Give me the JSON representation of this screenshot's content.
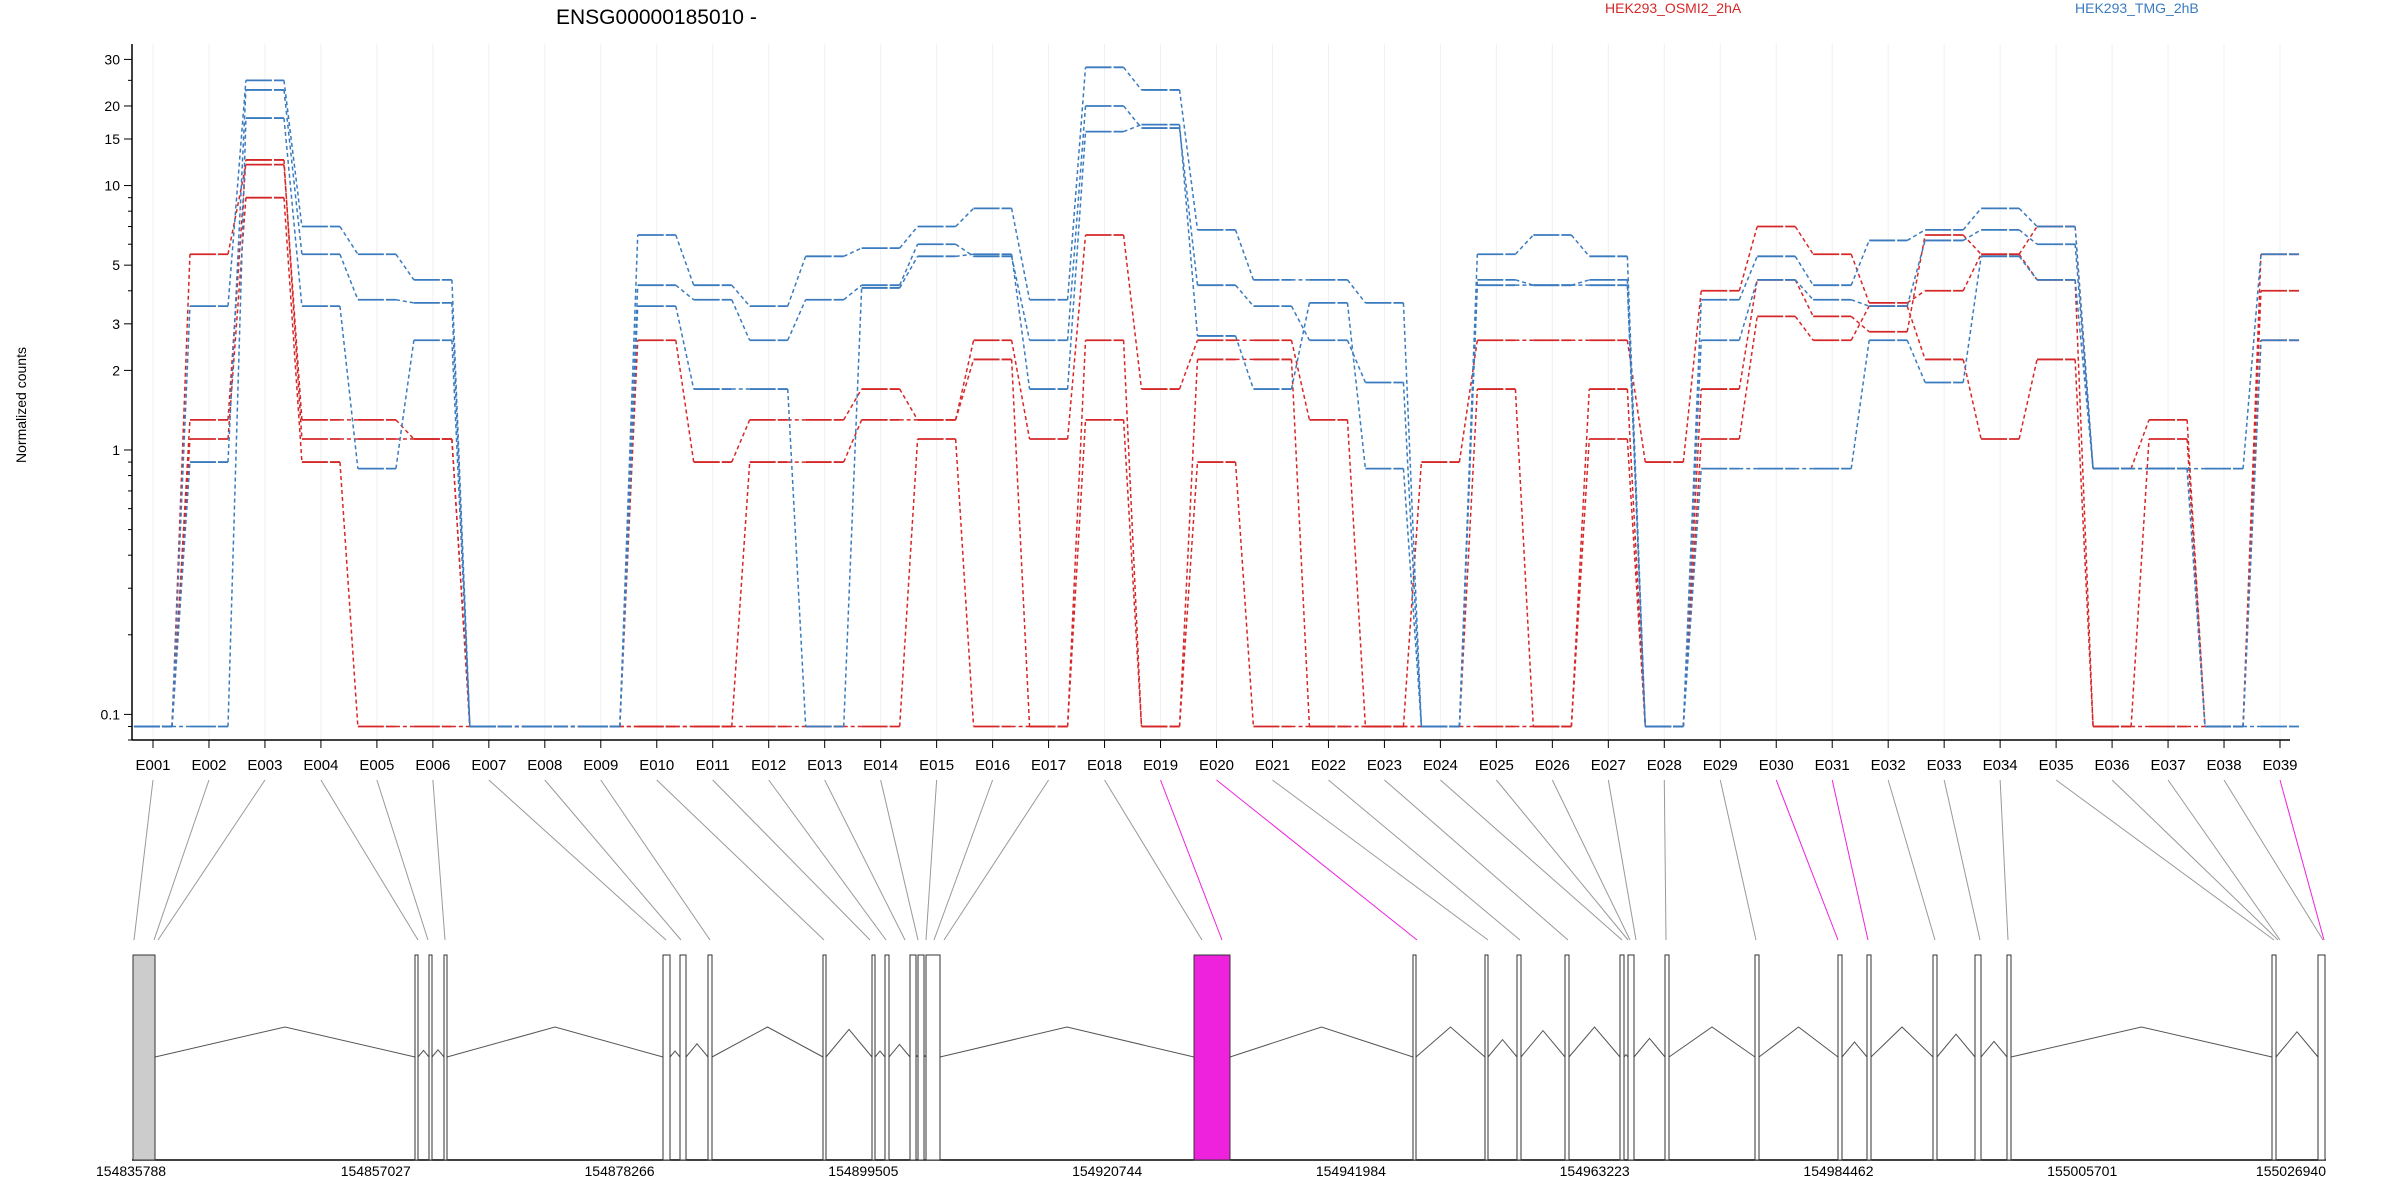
{
  "chart_data": {
    "type": "line",
    "title": "ENSG00000185010 -",
    "ylabel": "Normalized counts",
    "y_scale": "log",
    "ylim": [
      0.08,
      32
    ],
    "y_ticks": [
      "0.1",
      "1",
      "2",
      "3",
      "5",
      "10",
      "15",
      "20",
      "30"
    ],
    "legend": [
      {
        "label": "HEK293_OSMI2_2hA",
        "color": "#d62728"
      },
      {
        "label": "HEK293_TMG_2hB",
        "color": "#3a7bbf"
      }
    ],
    "categories": [
      "E001",
      "E002",
      "E003",
      "E004",
      "E005",
      "E006",
      "E007",
      "E008",
      "E009",
      "E010",
      "E011",
      "E012",
      "E013",
      "E014",
      "E015",
      "E016",
      "E017",
      "E018",
      "E019",
      "E020",
      "E021",
      "E022",
      "E023",
      "E024",
      "E025",
      "E026",
      "E027",
      "E028",
      "E029",
      "E030",
      "E031",
      "E032",
      "E033",
      "E034",
      "E035",
      "E036",
      "E037",
      "E038",
      "E039"
    ],
    "series": [
      {
        "group": "HEK293_OSMI2_2hA",
        "color": "#d62728",
        "values": [
          0.09,
          5.5,
          12,
          1.3,
          1.3,
          1.1,
          0.09,
          0.09,
          0.09,
          2.6,
          0.9,
          1.3,
          1.3,
          1.7,
          1.3,
          2.6,
          1.1,
          6.5,
          1.7,
          2.6,
          2.6,
          1.3,
          0.09,
          0.9,
          2.6,
          2.6,
          2.6,
          0.9,
          4,
          7,
          5.5,
          3.6,
          4,
          5.5,
          7,
          0.85,
          1.3,
          0.09,
          5.5
        ]
      },
      {
        "group": "HEK293_OSMI2_2hA",
        "color": "#d62728",
        "values": [
          0.09,
          1.3,
          12.5,
          1.1,
          1.1,
          1.1,
          0.09,
          0.09,
          0.09,
          0.09,
          0.09,
          0.9,
          0.9,
          1.3,
          1.3,
          2.2,
          0.09,
          2.6,
          0.09,
          2.2,
          2.2,
          0.09,
          0.09,
          0.09,
          1.7,
          0.09,
          1.7,
          0.09,
          1.7,
          4.4,
          3.2,
          2.8,
          6.5,
          5.5,
          4.4,
          0.09,
          1.1,
          0.09,
          2.6
        ]
      },
      {
        "group": "HEK293_OSMI2_2hA",
        "color": "#d62728",
        "values": [
          0.09,
          1.1,
          9,
          0.9,
          0.09,
          0.09,
          0.09,
          0.09,
          0.09,
          0.09,
          0.09,
          0.09,
          0.09,
          0.09,
          1.1,
          0.09,
          0.09,
          1.3,
          0.09,
          0.9,
          0.09,
          0.09,
          0.09,
          0.09,
          0.09,
          0.09,
          1.1,
          0.09,
          1.1,
          3.2,
          2.6,
          3.5,
          2.2,
          1.1,
          2.2,
          0.09,
          0.09,
          0.09,
          4
        ]
      },
      {
        "group": "HEK293_TMG_2hB",
        "color": "#3a7bbf",
        "values": [
          0.09,
          3.5,
          25,
          7,
          5.5,
          4.4,
          0.09,
          0.09,
          0.09,
          6.5,
          4.2,
          3.5,
          5.4,
          5.8,
          7,
          8.2,
          3.7,
          28,
          23,
          6.8,
          4.4,
          4.4,
          3.6,
          0.09,
          5.5,
          6.5,
          5.4,
          0.09,
          3.7,
          5.4,
          4.2,
          6.2,
          6.8,
          8.2,
          7,
          0.85,
          0.85,
          0.85,
          5.5
        ]
      },
      {
        "group": "HEK293_TMG_2hB",
        "color": "#3a7bbf",
        "values": [
          0.09,
          0.9,
          23,
          5.5,
          3.7,
          3.6,
          0.09,
          0.09,
          0.09,
          4.2,
          3.7,
          2.6,
          3.7,
          4.2,
          6,
          5.4,
          2.6,
          20,
          16.5,
          4.2,
          3.5,
          2.6,
          1.8,
          0.09,
          4.2,
          4.2,
          4.4,
          0.09,
          2.6,
          4.4,
          3.7,
          3.5,
          6.2,
          6.8,
          6,
          0.85,
          0.85,
          0.09,
          2.6
        ]
      },
      {
        "group": "HEK293_TMG_2hB",
        "color": "#3a7bbf",
        "values": [
          0.09,
          0.09,
          18,
          3.5,
          0.85,
          2.6,
          0.09,
          0.09,
          0.09,
          3.5,
          1.7,
          1.7,
          0.09,
          4.1,
          5.4,
          5.5,
          1.7,
          16,
          17,
          2.7,
          1.7,
          3.6,
          0.85,
          0.09,
          4.4,
          4.2,
          4.2,
          0.09,
          0.85,
          0.85,
          0.85,
          2.6,
          1.8,
          5.4,
          4.4,
          0.85,
          0.85,
          0.09,
          0.09
        ]
      }
    ],
    "gene_model": {
      "coordinate_ticks": [
        "154835788",
        "154857027",
        "154878266",
        "154899505",
        "154920744",
        "154941984",
        "154963223",
        "154984462",
        "155005701",
        "155026940"
      ],
      "highlighted_exons": [
        "E019",
        "E020",
        "E030",
        "E031",
        "E039"
      ],
      "highlight_color": "#ee22dd"
    }
  }
}
